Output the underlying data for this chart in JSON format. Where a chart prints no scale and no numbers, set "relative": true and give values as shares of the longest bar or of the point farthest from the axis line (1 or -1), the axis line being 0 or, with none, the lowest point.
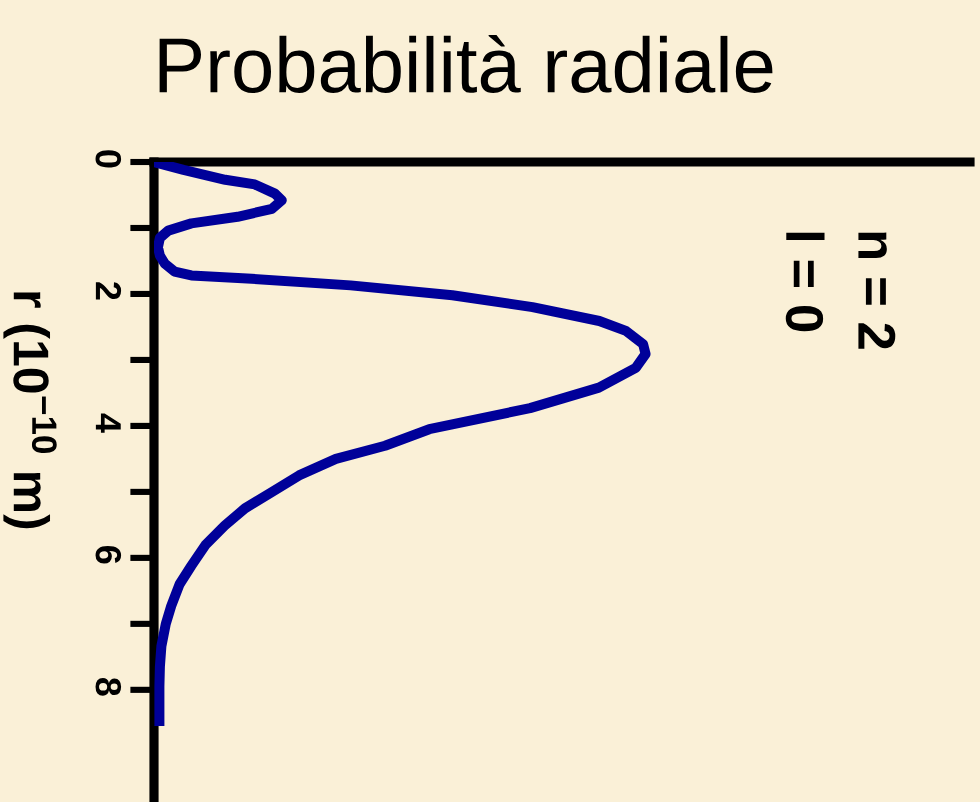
{
  "chart_data": {
    "type": "line",
    "title": "Probabilità radiale",
    "ylabel": "r (10$^{−10}$ m)",
    "annotations": [
      "n = 2\nl = 0"
    ],
    "orientation": "horizontal",
    "relative": true,
    "x": [
      0.0,
      0.12,
      0.27,
      0.34,
      0.48,
      0.58,
      0.71,
      0.83,
      0.93,
      1.04,
      1.15,
      1.29,
      1.42,
      1.54,
      1.66,
      1.72,
      1.77,
      1.87,
      2.02,
      2.2,
      2.41,
      2.56,
      2.76,
      2.91,
      3.12,
      3.42,
      3.73,
      4.05,
      4.3,
      4.5,
      4.75,
      5.0,
      5.25,
      5.51,
      5.8,
      6.12,
      6.4,
      6.73,
      7.0,
      7.34,
      7.65,
      7.95,
      8.55
    ],
    "series": [
      {
        "color": "#000099",
        "values": [
          0.0,
          0.06,
          0.145,
          0.205,
          0.246,
          0.26,
          0.24,
          0.17,
          0.076,
          0.029,
          0.012,
          0.008,
          0.012,
          0.022,
          0.042,
          0.076,
          0.199,
          0.4,
          0.607,
          0.77,
          0.906,
          0.96,
          0.995,
          1.0,
          0.98,
          0.905,
          0.765,
          0.56,
          0.47,
          0.37,
          0.295,
          0.24,
          0.185,
          0.144,
          0.105,
          0.076,
          0.052,
          0.035,
          0.024,
          0.015,
          0.012,
          0.011,
          0.011
        ]
      }
    ],
    "ylim": [
      9.7,
      0
    ],
    "yticks": [
      0,
      {
        "value": 1,
        "label": null
      },
      2,
      {
        "value": 3,
        "label": null
      },
      4,
      {
        "value": 5,
        "label": null
      },
      6,
      {
        "value": 7,
        "label": null
      },
      8
    ],
    "tick_labels": "y"
  }
}
